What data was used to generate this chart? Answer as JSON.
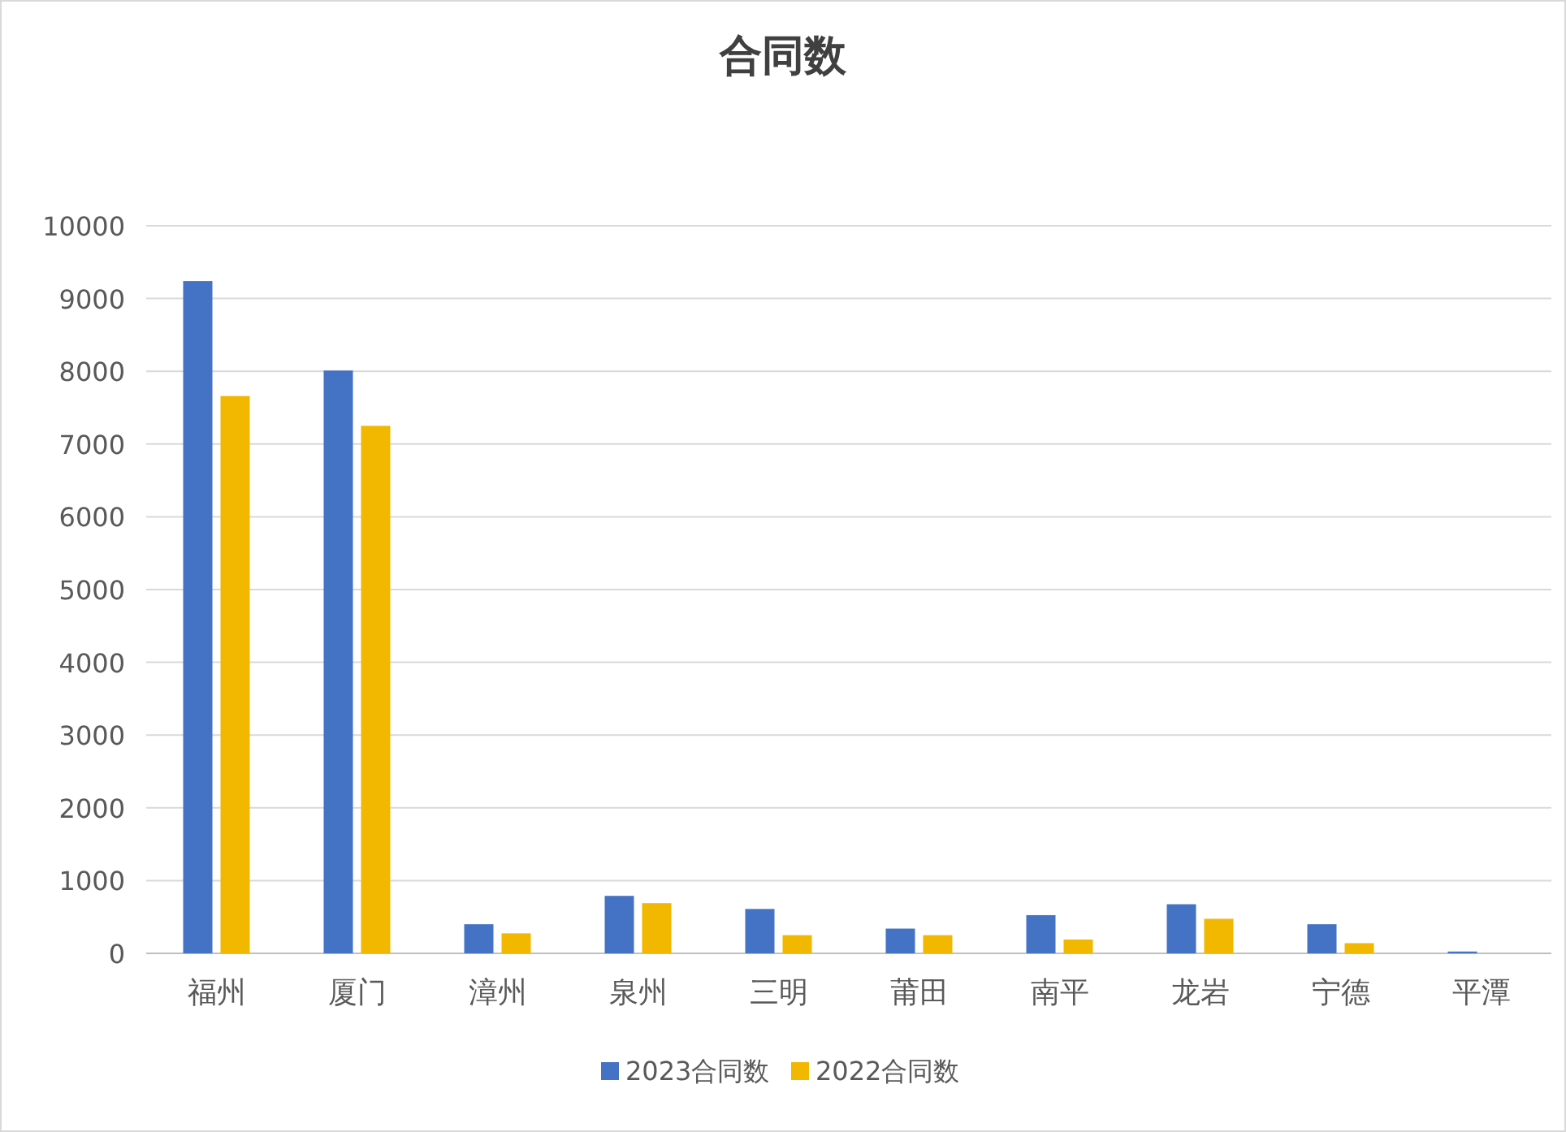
{
  "chart_data": {
    "type": "bar",
    "title": "合同数",
    "categories": [
      "福州",
      "厦门",
      "漳州",
      "泉州",
      "三明",
      "莆田",
      "南平",
      "龙岩",
      "宁德",
      "平潭"
    ],
    "series": [
      {
        "name": "2023合同数",
        "color": "#4472c4",
        "values": [
          9240,
          8010,
          400,
          790,
          610,
          340,
          525,
          675,
          400,
          25
        ]
      },
      {
        "name": "2022合同数",
        "color": "#f2b800",
        "values": [
          7660,
          7250,
          275,
          690,
          250,
          250,
          190,
          475,
          140,
          0
        ]
      }
    ],
    "ylim": [
      0,
      10000
    ],
    "yticks": [
      0,
      1000,
      2000,
      3000,
      4000,
      5000,
      6000,
      7000,
      8000,
      9000,
      10000
    ],
    "grid": "y",
    "legend": "bottom"
  }
}
